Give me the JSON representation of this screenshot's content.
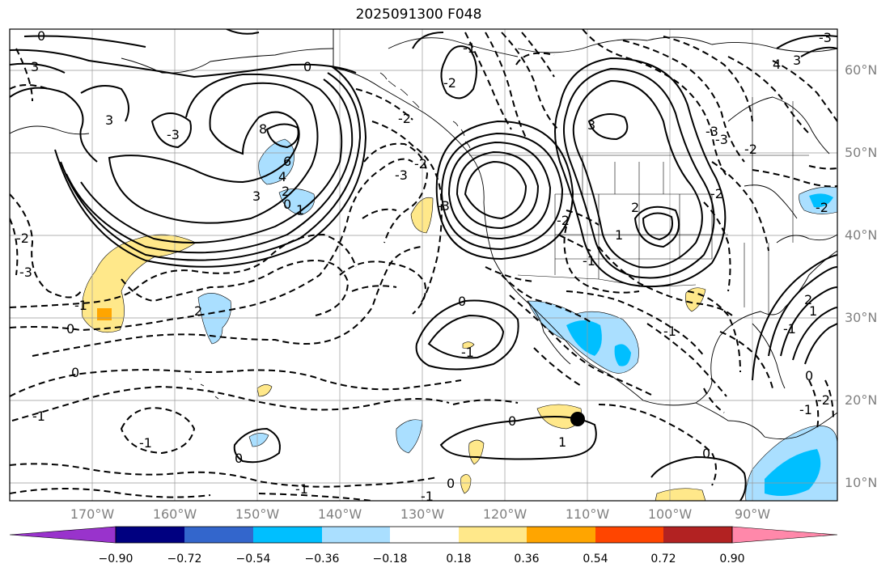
{
  "title": "2025091300 F048",
  "latitude_labels": [
    "60°N",
    "50°N",
    "40°N",
    "30°N",
    "20°N",
    "10°N"
  ],
  "longitude_labels": [
    "170°W",
    "160°W",
    "150°W",
    "140°W",
    "130°W",
    "120°W",
    "110°W",
    "100°W",
    "90°W"
  ],
  "contour_labels": [
    "0",
    "3",
    "3",
    "0",
    "-3",
    "-2",
    "-3",
    "2",
    "8",
    "6",
    "4",
    "3",
    "2",
    "0",
    "1",
    "-2",
    "-2",
    "-1",
    "-3",
    "0",
    "-1",
    "-2",
    "-3",
    "-3",
    "-1",
    "-1",
    "-3",
    "-2",
    "4",
    "3",
    "-3",
    "3",
    "2",
    "1",
    "0",
    "-1",
    "0",
    "1",
    "-2",
    "-2",
    "-2",
    "-1",
    "-1",
    "-1",
    "0",
    "0",
    "-1",
    "0",
    "1",
    "-1",
    "2",
    "0",
    "0",
    "-1",
    "-2"
  ],
  "colorbar": {
    "ticks": [
      "−0.90",
      "−0.72",
      "−0.54",
      "−0.36",
      "−0.18",
      "0.18",
      "0.36",
      "0.54",
      "0.72",
      "0.90"
    ],
    "colors": [
      "#9933cc",
      "#000080",
      "#3366cc",
      "#00bfff",
      "#aadfff",
      "#ffffff",
      "#ffe88a",
      "#ffa500",
      "#ff4500",
      "#b22222",
      "#ff88aa"
    ]
  },
  "colors": {
    "light_blue": "#aadfff",
    "mid_blue": "#00bfff",
    "light_yellow": "#ffe88a",
    "orange": "#ffa500",
    "grid": "#999999",
    "axis_label": "#808080"
  },
  "marker": {
    "label": "station-marker"
  }
}
